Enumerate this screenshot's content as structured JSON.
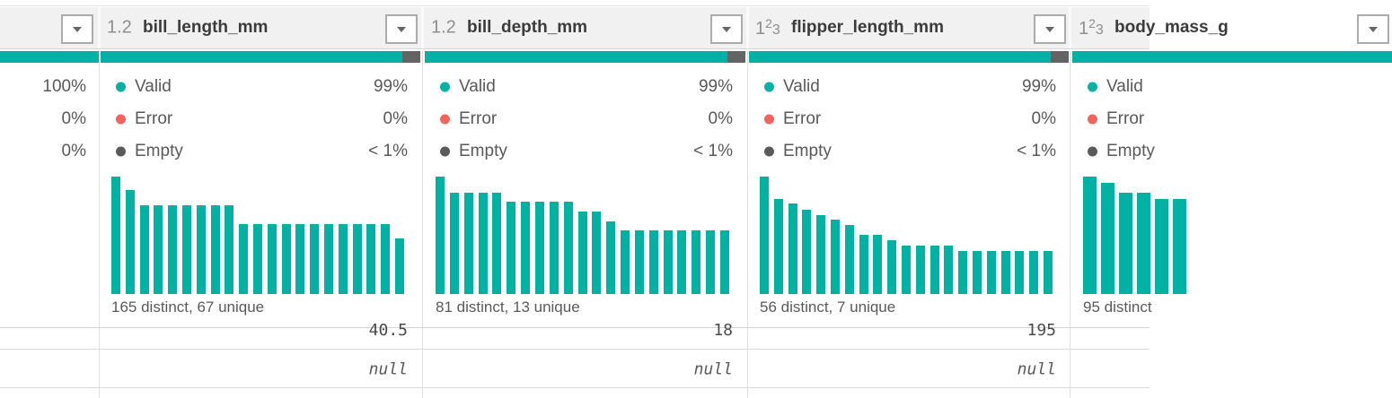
{
  "colors": {
    "valid_teal": "#00B1A4",
    "error_red": "#F4645F",
    "empty_gray": "#5A5A5A",
    "histogram_teal": "#00B1A4",
    "quality_empty_segment": "#646464"
  },
  "left_partial_column": {
    "quality_percentages": [
      "100%",
      "0%",
      "0%"
    ]
  },
  "columns": [
    {
      "name": "bill_length_mm",
      "type": "decimal-number",
      "type_icon": "1.2",
      "stats": [
        {
          "label": "Valid",
          "value": "99%"
        },
        {
          "label": "Error",
          "value": "0%"
        },
        {
          "label": "Empty",
          "value": "< 1%"
        }
      ],
      "distinct_summary": "165 distinct, 67 unique",
      "histogram": [
        1.0,
        0.885,
        0.755,
        0.755,
        0.755,
        0.755,
        0.755,
        0.755,
        0.755,
        0.595,
        0.595,
        0.595,
        0.595,
        0.595,
        0.595,
        0.595,
        0.595,
        0.595,
        0.595,
        0.595,
        0.47
      ],
      "rows": [
        "40.5",
        "null"
      ]
    },
    {
      "name": "bill_depth_mm",
      "type": "decimal-number",
      "type_icon": "1.2",
      "stats": [
        {
          "label": "Valid",
          "value": "99%"
        },
        {
          "label": "Error",
          "value": "0%"
        },
        {
          "label": "Empty",
          "value": "< 1%"
        }
      ],
      "distinct_summary": "81 distinct, 13 unique",
      "histogram": [
        1.0,
        0.865,
        0.865,
        0.865,
        0.865,
        0.79,
        0.79,
        0.79,
        0.79,
        0.79,
        0.7,
        0.7,
        0.615,
        0.545,
        0.545,
        0.545,
        0.545,
        0.545,
        0.545,
        0.545,
        0.545
      ],
      "rows": [
        "18",
        "null"
      ]
    },
    {
      "name": "flipper_length_mm",
      "type": "whole-number",
      "type_icon": "123",
      "stats": [
        {
          "label": "Valid",
          "value": "99%"
        },
        {
          "label": "Error",
          "value": "0%"
        },
        {
          "label": "Empty",
          "value": "< 1%"
        }
      ],
      "distinct_summary": "56 distinct, 7 unique",
      "histogram": [
        1.0,
        0.81,
        0.77,
        0.72,
        0.67,
        0.63,
        0.59,
        0.5,
        0.5,
        0.46,
        0.415,
        0.415,
        0.415,
        0.415,
        0.37,
        0.37,
        0.37,
        0.37,
        0.37,
        0.37,
        0.37
      ],
      "rows": [
        "195",
        "null"
      ]
    },
    {
      "name": "body_mass_g",
      "type": "whole-number",
      "type_icon": "123",
      "stats": [
        {
          "label": "Valid",
          "value": ""
        },
        {
          "label": "Error",
          "value": ""
        },
        {
          "label": "Empty",
          "value": ""
        }
      ],
      "distinct_summary": "95 distinct",
      "histogram": [
        1.0,
        0.95,
        0.86,
        0.86,
        0.81,
        0.81
      ],
      "rows": [
        "",
        ""
      ]
    }
  ]
}
